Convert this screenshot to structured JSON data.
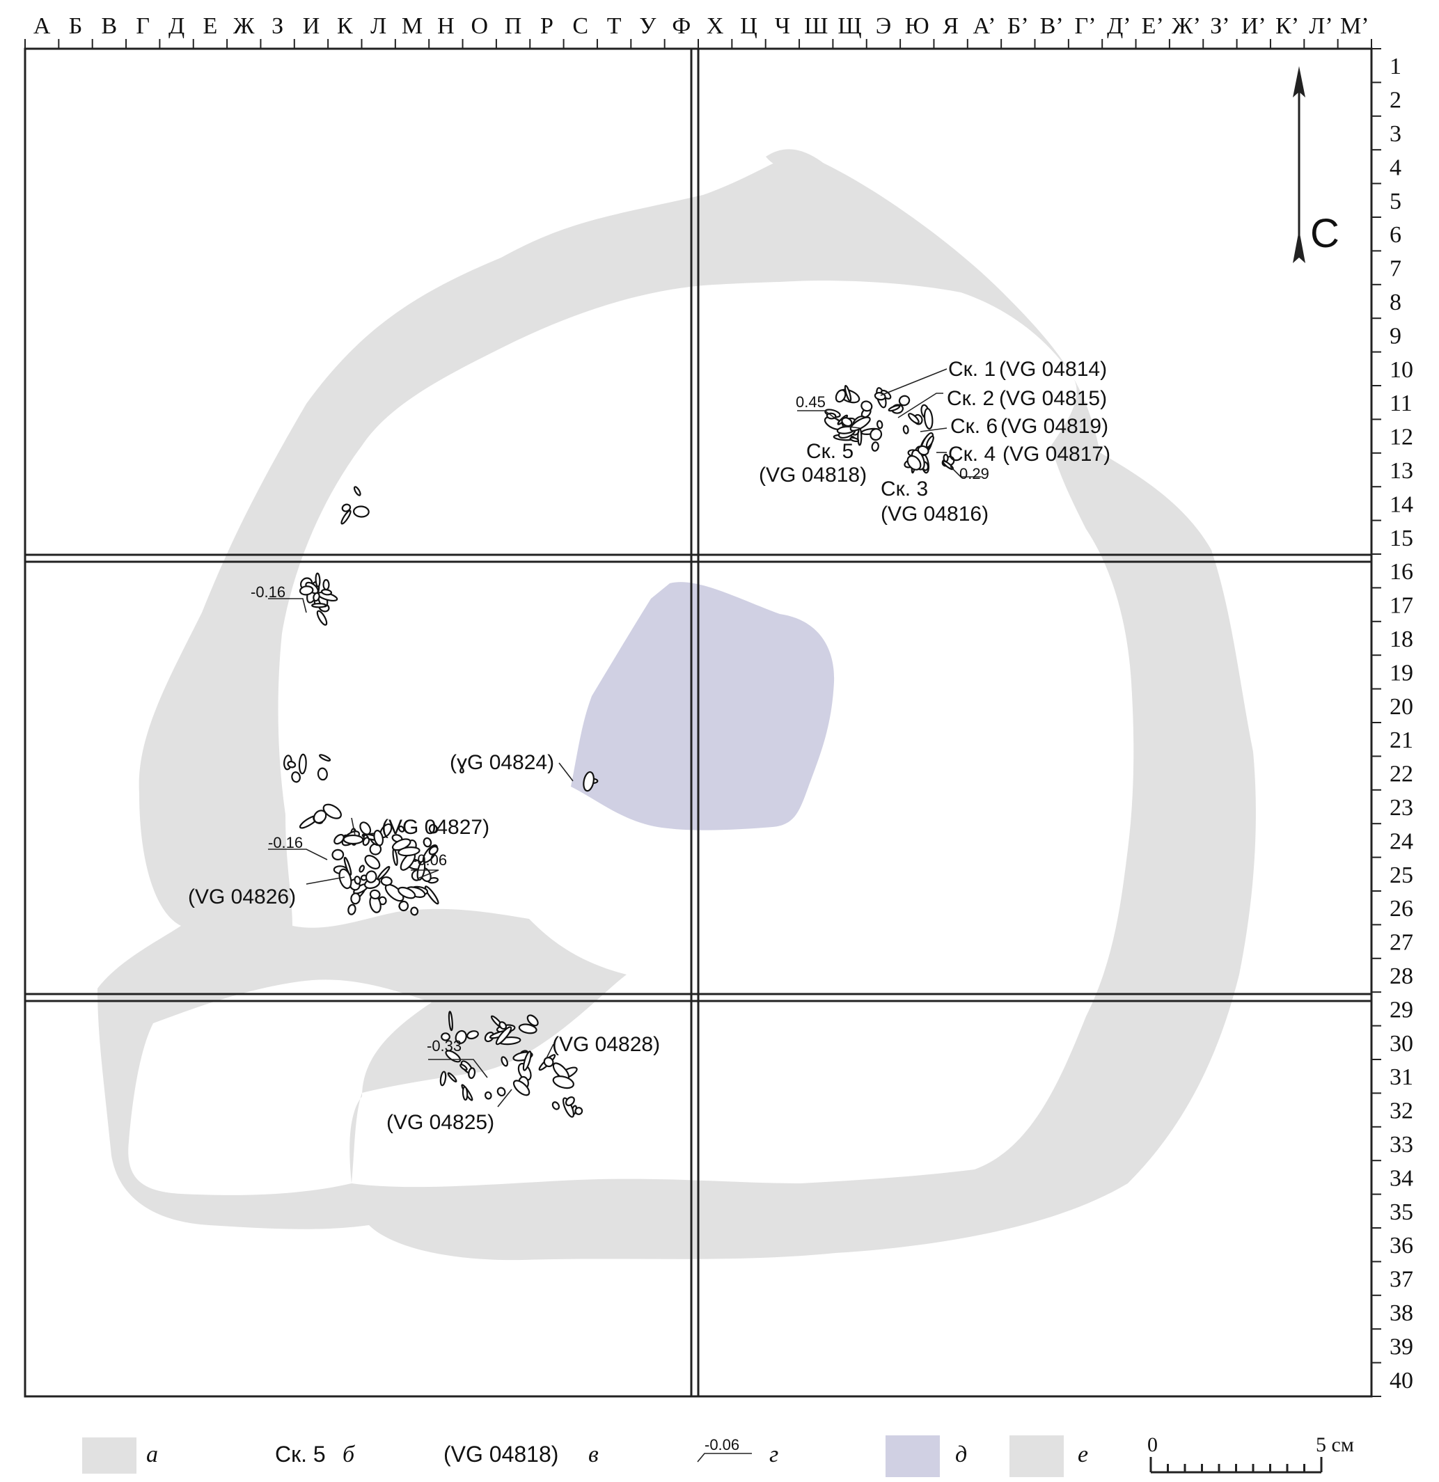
{
  "grid": {
    "columns": [
      "А",
      "Б",
      "В",
      "Г",
      "Д",
      "Е",
      "Ж",
      "З",
      "И",
      "К",
      "Л",
      "М",
      "Н",
      "О",
      "П",
      "Р",
      "С",
      "Т",
      "У",
      "Ф",
      "Х",
      "Ц",
      "Ч",
      "Ш",
      "Щ",
      "Э",
      "Ю",
      "Я",
      "А’",
      "Б’",
      "В’",
      "Г’",
      "Д’",
      "Е’",
      "Ж’",
      "З’",
      "И’",
      "К’",
      "Л’",
      "М’"
    ],
    "rows": [
      "1",
      "2",
      "3",
      "4",
      "5",
      "6",
      "7",
      "8",
      "9",
      "10",
      "11",
      "12",
      "13",
      "14",
      "15",
      "16",
      "17",
      "18",
      "19",
      "20",
      "21",
      "22",
      "23",
      "24",
      "25",
      "26",
      "27",
      "28",
      "29",
      "30",
      "31",
      "32",
      "33",
      "34",
      "35",
      "36",
      "37",
      "38",
      "39",
      "40"
    ]
  },
  "north_label": "С",
  "colors": {
    "ring": "#e1e1e1",
    "hearth": "#d0d0e3",
    "frame": "#222222",
    "fragment": "#111111"
  },
  "annotations": {
    "sk1": "Ск. 1",
    "vg04814": "(VG 04814)",
    "sk2": "Ск. 2",
    "vg04815": "(VG 04815)",
    "sk6": "Ск. 6",
    "vg04819": "(VG 04819)",
    "sk4": "Ск. 4",
    "vg04817": "(VG 04817)",
    "sk5": "Ск. 5",
    "vg04818": "(VG 04818)",
    "sk3": "Ск. 3",
    "vg04816": "(VG 04816)",
    "e045": "0.45",
    "e029": "0.29",
    "vg04824": "(ɣG 04824)",
    "vg04827": "(VG 04827)",
    "vg04826": "(VG 04826)",
    "vg04828": "(VG 04828)",
    "vg04825": "(VG 04825)",
    "em016a": "-0.16",
    "em016b": "-0.16",
    "em006": "-0.06",
    "em033": "-0.33"
  },
  "legend": {
    "a_letter": "а",
    "b_text": "Ск. 5",
    "b_letter": "б",
    "v_text": "(VG 04818)",
    "v_letter": "в",
    "g_value": "-0.06",
    "g_letter": "г",
    "d_letter": "д",
    "e_letter": "е",
    "scale_zero": "0",
    "scale_end": "5 см"
  }
}
